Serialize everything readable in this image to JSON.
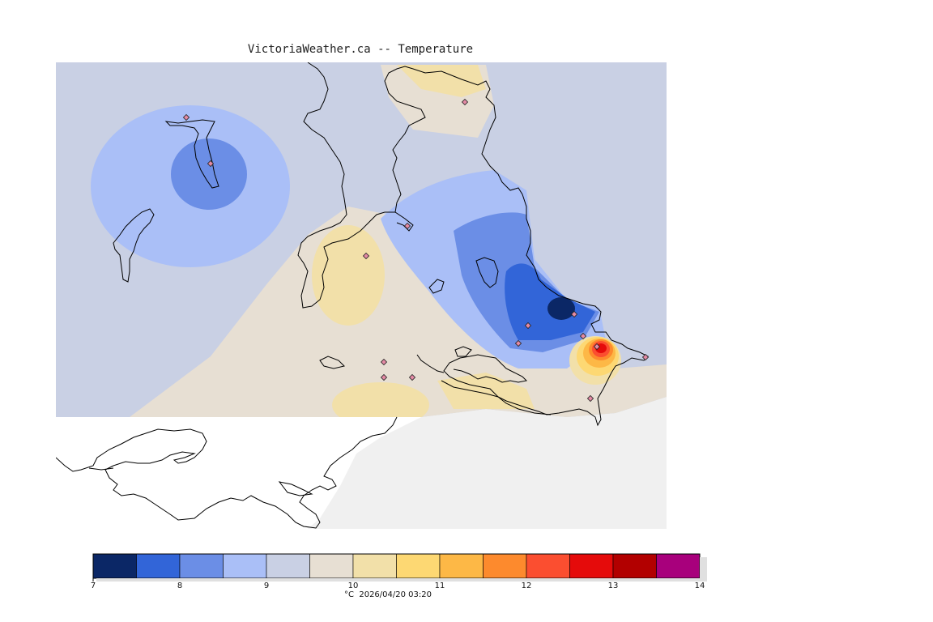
{
  "title": "VictoriaWeather.ca -- Temperature",
  "legend": {
    "colors": [
      "#0b2766",
      "#3265d8",
      "#6b8ee6",
      "#aabff7",
      "#c9d0e4",
      "#e7dfd3",
      "#f2e0a9",
      "#fdd873",
      "#fdb846",
      "#fd8a2d",
      "#fb4e30",
      "#e50b0b",
      "#b20000",
      "#a8007c"
    ],
    "ticks": [
      "7",
      "8",
      "9",
      "10",
      "11",
      "12",
      "13",
      "14"
    ],
    "unit": "°C",
    "timestamp": "2026/04/20 03:20",
    "caption": "°C  2026/04/20 03:20"
  },
  "colors": {
    "land_background": "#f0f0f0",
    "coastline": "#000000",
    "station_marker": "#e48aa4"
  },
  "station_count": 15
}
